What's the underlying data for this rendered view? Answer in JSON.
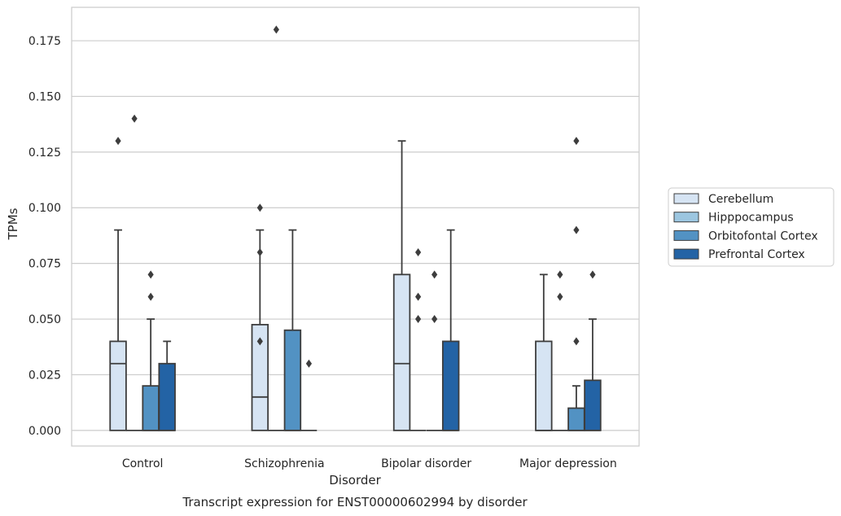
{
  "chart_data": {
    "type": "box",
    "title": "",
    "caption": "Transcript expression for ENST00000602994 by disorder",
    "xlabel": "Disorder",
    "ylabel": "TPMs",
    "ylim": [
      -0.007,
      0.19
    ],
    "yticks": [
      "0.000",
      "0.025",
      "0.050",
      "0.075",
      "0.100",
      "0.125",
      "0.150",
      "0.175"
    ],
    "categories": [
      "Control",
      "Schizophrenia",
      "Bipolar disorder",
      "Major depression"
    ],
    "grid": true,
    "legend_position": "right",
    "series": [
      {
        "name": "Cerebellum",
        "color": "#d6e4f3",
        "boxes": [
          {
            "q1": 0.0,
            "median": 0.03,
            "q3": 0.04,
            "whisker_low": 0.0,
            "whisker_high": 0.09,
            "outliers": [
              0.13
            ]
          },
          {
            "q1": 0.0,
            "median": 0.015,
            "q3": 0.0475,
            "whisker_low": 0.0,
            "whisker_high": 0.09,
            "outliers": [
              0.1,
              0.08,
              0.04
            ]
          },
          {
            "q1": 0.0,
            "median": 0.03,
            "q3": 0.07,
            "whisker_low": 0.0,
            "whisker_high": 0.13,
            "outliers": []
          },
          {
            "q1": 0.0,
            "median": 0.0,
            "q3": 0.04,
            "whisker_low": 0.0,
            "whisker_high": 0.07,
            "outliers": []
          }
        ]
      },
      {
        "name": "Hipppocampus",
        "color": "#9cc6e0",
        "boxes": [
          {
            "q1": 0.0,
            "median": 0.0,
            "q3": 0.0,
            "whisker_low": 0.0,
            "whisker_high": 0.0,
            "outliers": [
              0.14
            ]
          },
          {
            "q1": 0.0,
            "median": 0.0,
            "q3": 0.0,
            "whisker_low": 0.0,
            "whisker_high": 0.0,
            "outliers": [
              0.18
            ]
          },
          {
            "q1": 0.0,
            "median": 0.0,
            "q3": 0.0,
            "whisker_low": 0.0,
            "whisker_high": 0.0,
            "outliers": [
              0.08,
              0.06,
              0.05
            ]
          },
          {
            "q1": 0.0,
            "median": 0.0,
            "q3": 0.0,
            "whisker_low": 0.0,
            "whisker_high": 0.0,
            "outliers": [
              0.07,
              0.06
            ]
          }
        ]
      },
      {
        "name": "Orbitofontal Cortex",
        "color": "#5292c3",
        "boxes": [
          {
            "q1": 0.0,
            "median": 0.0,
            "q3": 0.02,
            "whisker_low": 0.0,
            "whisker_high": 0.05,
            "outliers": [
              0.07,
              0.06
            ]
          },
          {
            "q1": 0.0,
            "median": 0.0,
            "q3": 0.045,
            "whisker_low": 0.0,
            "whisker_high": 0.09,
            "outliers": []
          },
          {
            "q1": 0.0,
            "median": 0.0,
            "q3": 0.0,
            "whisker_low": 0.0,
            "whisker_high": 0.0,
            "outliers": [
              0.07,
              0.05
            ]
          },
          {
            "q1": 0.0,
            "median": 0.0,
            "q3": 0.01,
            "whisker_low": 0.0,
            "whisker_high": 0.02,
            "outliers": [
              0.13,
              0.09,
              0.04
            ]
          }
        ]
      },
      {
        "name": "Prefrontal Cortex",
        "color": "#2363a5",
        "boxes": [
          {
            "q1": 0.0,
            "median": 0.0,
            "q3": 0.03,
            "whisker_low": 0.0,
            "whisker_high": 0.04,
            "outliers": []
          },
          {
            "q1": 0.0,
            "median": 0.0,
            "q3": 0.0,
            "whisker_low": 0.0,
            "whisker_high": 0.0,
            "outliers": [
              0.03
            ]
          },
          {
            "q1": 0.0,
            "median": 0.0,
            "q3": 0.04,
            "whisker_low": 0.0,
            "whisker_high": 0.09,
            "outliers": []
          },
          {
            "q1": 0.0,
            "median": 0.0,
            "q3": 0.0225,
            "whisker_low": 0.0,
            "whisker_high": 0.05,
            "outliers": [
              0.07
            ]
          }
        ]
      }
    ]
  }
}
